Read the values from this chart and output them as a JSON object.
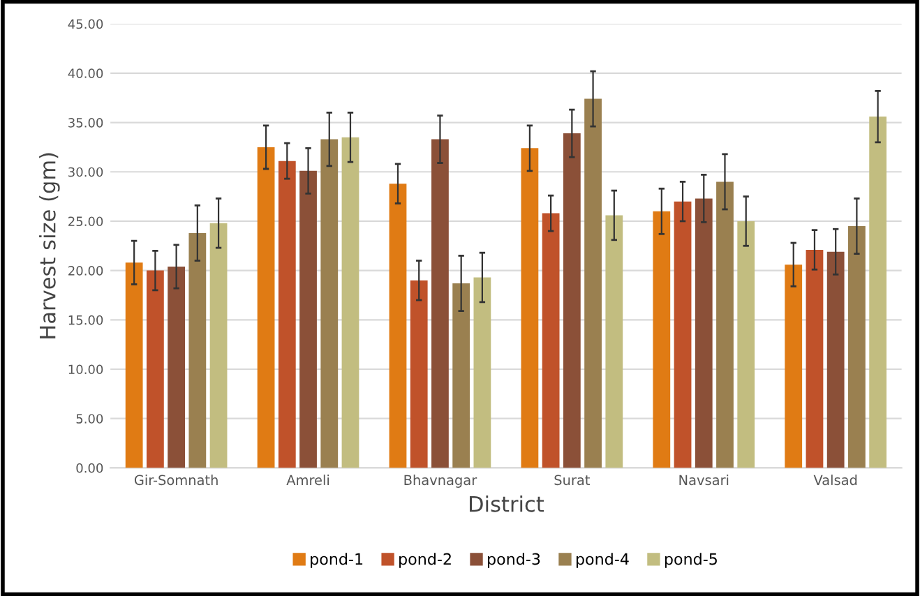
{
  "chart_data": {
    "type": "bar",
    "xlabel": "District",
    "ylabel": "Harvest size (gm)",
    "categories": [
      "Gir-Somnath",
      "Amreli",
      "Bhavnagar",
      "Surat",
      "Navsari",
      "Valsad"
    ],
    "series": [
      {
        "name": "pond-1",
        "color": "#e07b14",
        "values": [
          20.8,
          32.5,
          28.8,
          32.4,
          26.0,
          20.6
        ],
        "errors": [
          2.2,
          2.2,
          2.0,
          2.3,
          2.3,
          2.2
        ]
      },
      {
        "name": "pond-2",
        "color": "#c0522a",
        "values": [
          20.0,
          31.1,
          19.0,
          25.8,
          27.0,
          22.1
        ],
        "errors": [
          2.0,
          1.8,
          2.0,
          1.8,
          2.0,
          2.0
        ]
      },
      {
        "name": "pond-3",
        "color": "#8b5038",
        "values": [
          20.4,
          30.1,
          33.3,
          33.9,
          27.3,
          21.9
        ],
        "errors": [
          2.2,
          2.3,
          2.4,
          2.4,
          2.4,
          2.3
        ]
      },
      {
        "name": "pond-4",
        "color": "#9a8050",
        "values": [
          23.8,
          33.3,
          18.7,
          37.4,
          29.0,
          24.5
        ],
        "errors": [
          2.8,
          2.7,
          2.8,
          2.8,
          2.8,
          2.8
        ]
      },
      {
        "name": "pond-5",
        "color": "#c2bd80",
        "values": [
          24.8,
          33.5,
          19.3,
          25.6,
          25.0,
          35.6
        ],
        "errors": [
          2.5,
          2.5,
          2.5,
          2.5,
          2.5,
          2.6
        ]
      }
    ],
    "ylim": [
      0,
      45
    ],
    "yticks": [
      {
        "value": 0,
        "label": "0.00"
      },
      {
        "value": 5,
        "label": "5.00"
      },
      {
        "value": 10,
        "label": "10.00"
      },
      {
        "value": 15,
        "label": "15.00"
      },
      {
        "value": 20,
        "label": "20.00"
      },
      {
        "value": 25,
        "label": "25.00"
      },
      {
        "value": 30,
        "label": "30.00"
      },
      {
        "value": 35,
        "label": "35.00"
      },
      {
        "value": 40,
        "label": "40.00"
      },
      {
        "value": 45,
        "label": "45.00"
      }
    ],
    "grid": "y",
    "legend": "bottom"
  }
}
